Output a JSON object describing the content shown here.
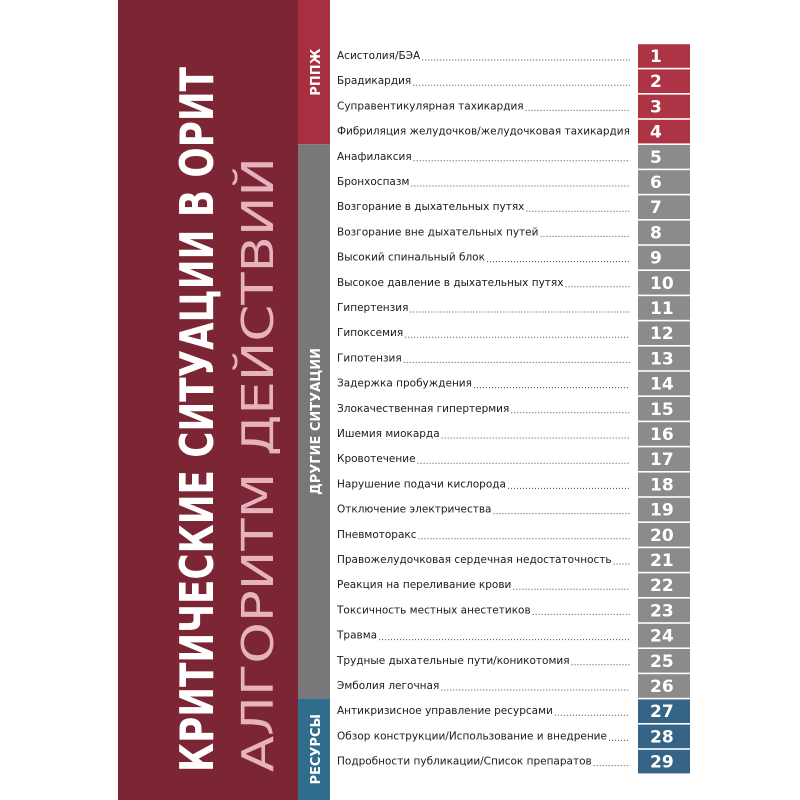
{
  "cover": {
    "title": "КРИТИЧЕСКИЕ СИТУАЦИИ В ОРИТ",
    "subtitle": "АЛГОРИТМ ДЕЙСТВИЙ"
  },
  "sections": [
    {
      "label": "РППЖ",
      "items": [
        {
          "title": "Асистолия/БЭА",
          "page": 1
        },
        {
          "title": "Брадикардия",
          "page": 2
        },
        {
          "title": "Суправентикулярная тахикардия",
          "page": 3
        },
        {
          "title": "Фибриляция желудочков/желудочковая тахикардия",
          "page": 4
        }
      ]
    },
    {
      "label": "ДРУГИЕ СИТУАЦИИ",
      "items": [
        {
          "title": "Анафилаксия",
          "page": 5
        },
        {
          "title": "Бронхоспазм",
          "page": 6
        },
        {
          "title": "Возгорание в дыхательных путях",
          "page": 7
        },
        {
          "title": "Возгорание вне дыхательных путей",
          "page": 8
        },
        {
          "title": "Высокий спинальный блок",
          "page": 9
        },
        {
          "title": "Высокое давление в дыхательных путях",
          "page": 10
        },
        {
          "title": "Гипертензия",
          "page": 11
        },
        {
          "title": "Гипоксемия",
          "page": 12
        },
        {
          "title": "Гипотензия",
          "page": 13
        },
        {
          "title": "Задержка пробуждения",
          "page": 14
        },
        {
          "title": "Злокачественная гипертермия",
          "page": 15
        },
        {
          "title": "Ишемия миокарда",
          "page": 16
        },
        {
          "title": "Кровотечение",
          "page": 17
        },
        {
          "title": "Нарушение подачи кислорода",
          "page": 18
        },
        {
          "title": "Отключение электричества",
          "page": 19
        },
        {
          "title": "Пневмоторакс",
          "page": 20
        },
        {
          "title": "Правожелудочковая сердечная недостаточность",
          "page": 21
        },
        {
          "title": "Реакция на переливание крови",
          "page": 22
        },
        {
          "title": "Токсичность местных анестетиков",
          "page": 23
        },
        {
          "title": "Травма",
          "page": 24
        },
        {
          "title": "Трудные дыхательные пути/коникотомия",
          "page": 25
        },
        {
          "title": "Эмболия легочная",
          "page": 26
        }
      ]
    },
    {
      "label": "РЕСУРСЫ",
      "items": [
        {
          "title": "Антикризисное управление ресурсами",
          "page": 27
        },
        {
          "title": "Обзор конструкции/Использование и внедрение",
          "page": 28
        },
        {
          "title": "Подробности публикации/Список препаратов",
          "page": 29
        }
      ]
    }
  ]
}
